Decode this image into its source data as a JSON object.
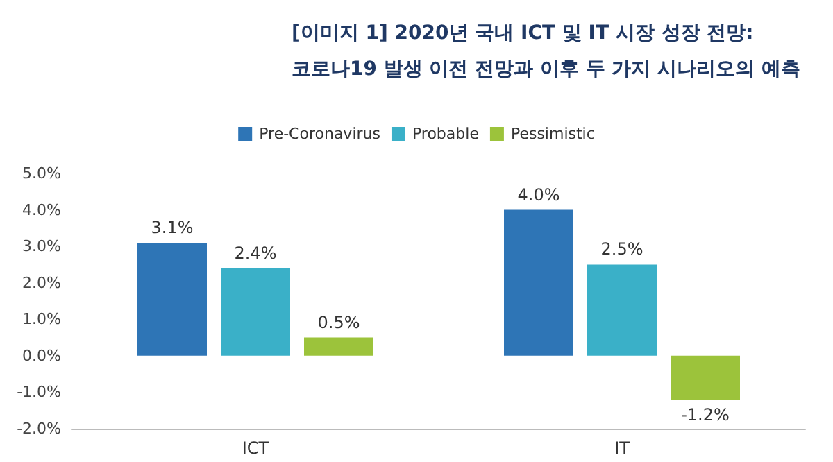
{
  "chart_data": {
    "type": "bar",
    "title": "[이미지 1] 2020년 국내 ICT 및 IT 시장 성장 전망:",
    "subtitle": "코로나19 발생 이전 전망과 이후 두 가지 시나리오의 예측",
    "categories": [
      "ICT",
      "IT"
    ],
    "series": [
      {
        "name": "Pre-Coronavirus",
        "color": "#2e75b6",
        "values": [
          3.1,
          4.0
        ],
        "value_labels": [
          "3.1%",
          "4.0%"
        ]
      },
      {
        "name": "Probable",
        "color": "#3ab0c8",
        "values": [
          2.4,
          2.5
        ],
        "value_labels": [
          "2.4%",
          "2.5%"
        ]
      },
      {
        "name": "Pessimistic",
        "color": "#9cc33b",
        "values": [
          0.5,
          -1.2
        ],
        "value_labels": [
          "0.5%",
          "-1.2%"
        ]
      }
    ],
    "ylim": [
      -2,
      5
    ],
    "yticks": [
      {
        "value": -2,
        "label": "-2.0%"
      },
      {
        "value": -1,
        "label": "-1.0%"
      },
      {
        "value": 0,
        "label": "0.0%"
      },
      {
        "value": 1,
        "label": "1.0%"
      },
      {
        "value": 2,
        "label": "2.0%"
      },
      {
        "value": 3,
        "label": "3.0%"
      },
      {
        "value": 4,
        "label": "4.0%"
      },
      {
        "value": 5,
        "label": "5.0%"
      }
    ],
    "grid": false,
    "legend": "top"
  }
}
